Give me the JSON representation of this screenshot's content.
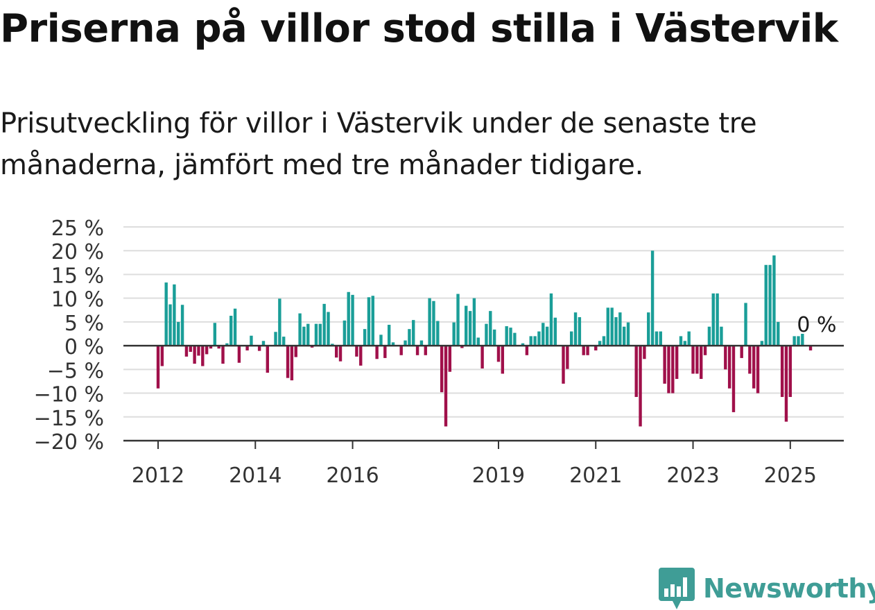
{
  "title": "Priserna på villor stod stilla i Västervik",
  "subtitle": "Prisutveckling för villor i Västervik under de senaste tre månaderna, jämfört med tre månader tidigare.",
  "brand": {
    "name": "Newsworthy",
    "color": "#3f9d96",
    "icon": "newsworthy-bar-chart-icon"
  },
  "colors": {
    "positive": "#1a9e98",
    "negative": "#a0104a",
    "grid": "#dddddd",
    "axis": "#333333"
  },
  "chart_data": {
    "type": "bar",
    "x_start": "2012-01",
    "x_step": "month",
    "ylim": [
      -20,
      25
    ],
    "yticks": [
      {
        "value": 25,
        "label": "25 %"
      },
      {
        "value": 20,
        "label": "20 %"
      },
      {
        "value": 15,
        "label": "15 %"
      },
      {
        "value": 10,
        "label": "10 %"
      },
      {
        "value": 5,
        "label": "5 %"
      },
      {
        "value": 0,
        "label": "0 %"
      },
      {
        "value": -5,
        "label": "−5 %"
      },
      {
        "value": -10,
        "label": "−10 %"
      },
      {
        "value": -15,
        "label": "−15 %"
      },
      {
        "value": -20,
        "label": "−20 %"
      }
    ],
    "xticks": [
      {
        "date": "2012-01",
        "label": "2012"
      },
      {
        "date": "2014-01",
        "label": "2014"
      },
      {
        "date": "2016-01",
        "label": "2016"
      },
      {
        "date": "2019-01",
        "label": "2019"
      },
      {
        "date": "2021-01",
        "label": "2021"
      },
      {
        "date": "2023-01",
        "label": "2023"
      },
      {
        "date": "2025-01",
        "label": "2025"
      }
    ],
    "values": [
      -9,
      -4.3,
      13.3,
      8.7,
      12.9,
      5,
      8.6,
      -2.3,
      -1.3,
      -3.8,
      -2.1,
      -4.3,
      -1.8,
      -0.6,
      4.8,
      -0.6,
      -3.8,
      0.5,
      6.3,
      7.8,
      -3.6,
      0,
      -1,
      2.1,
      0,
      -1.1,
      1,
      -5.7,
      0,
      2.9,
      9.9,
      1.9,
      -6.8,
      -7.3,
      -2.4,
      6.8,
      4,
      4.6,
      -0.4,
      4.6,
      4.6,
      8.8,
      7.1,
      0.4,
      -2.5,
      -3.3,
      5.3,
      11.3,
      10.7,
      -2.3,
      -4.2,
      3.5,
      10.2,
      10.5,
      -2.8,
      2.3,
      -2.6,
      4.4,
      0.7,
      0,
      -2,
      1.1,
      3.5,
      5.4,
      -2,
      1.1,
      -2,
      10,
      9.4,
      5.2,
      -9.8,
      -17,
      -5.5,
      4.9,
      10.9,
      -0.5,
      8.4,
      7.3,
      10,
      1.7,
      -4.8,
      4.6,
      7.3,
      3.4,
      -3.4,
      -5.9,
      4.1,
      3.8,
      2.7,
      0,
      0.5,
      -2,
      2,
      2,
      3,
      4.8,
      4,
      11,
      5.9,
      0,
      -8,
      -4.9,
      3,
      7,
      6,
      -2,
      -2,
      0,
      -1,
      1,
      2,
      8,
      8,
      6,
      7,
      4,
      4.9,
      0,
      -10.8,
      -17,
      -2.8,
      7,
      20,
      3,
      3,
      -8,
      -10,
      -10,
      -7,
      2,
      1,
      3,
      -5.9,
      -5.9,
      -7,
      -2,
      4,
      11,
      11,
      4,
      -5,
      -9,
      -14,
      0,
      -2.6,
      9,
      -5.9,
      -9,
      -10,
      1,
      17,
      17,
      19,
      5,
      -10.8,
      -16,
      -10.8,
      2,
      2,
      2.5,
      0,
      -1
    ],
    "annotation": {
      "label": "0 %"
    }
  }
}
